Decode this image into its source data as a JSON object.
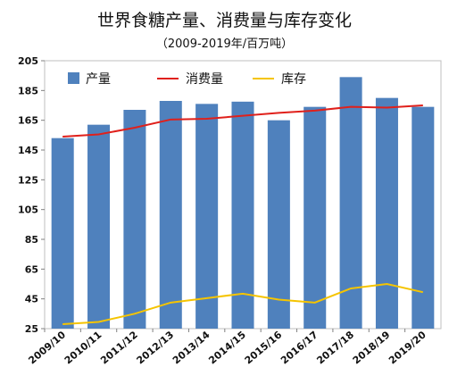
{
  "chart_data": {
    "type": "bar",
    "title": "世界食糖产量、消费量与库存变化",
    "subtitle": "（2009-2019年/百万吨）",
    "categories": [
      "2009/10",
      "2010/11",
      "2011/12",
      "2012/13",
      "2013/14",
      "2014/15",
      "2015/16",
      "2016/17",
      "2017/18",
      "2018/19",
      "2019/20"
    ],
    "series": [
      {
        "name": "产量",
        "type": "bar",
        "color": "#4F81BD",
        "values": [
          153,
          162,
          172,
          178,
          176,
          177.5,
          165,
          174,
          194,
          180,
          174
        ]
      },
      {
        "name": "消费量",
        "type": "line",
        "color": "#E0201B",
        "values": [
          154,
          155.5,
          160,
          165.5,
          166,
          168,
          170,
          171.5,
          174,
          173.5,
          175
        ]
      },
      {
        "name": "库存",
        "type": "line",
        "color": "#F5C400",
        "values": [
          28,
          29.5,
          35,
          42.5,
          45.5,
          48.5,
          44.5,
          42.5,
          52,
          55,
          49.5
        ]
      }
    ],
    "y_ticks": [
      "25",
      "45",
      "65",
      "85",
      "105",
      "125",
      "145",
      "165",
      "185",
      "205"
    ],
    "ylim": [
      25,
      205
    ],
    "legend_position": "top-inside",
    "grid": false
  }
}
